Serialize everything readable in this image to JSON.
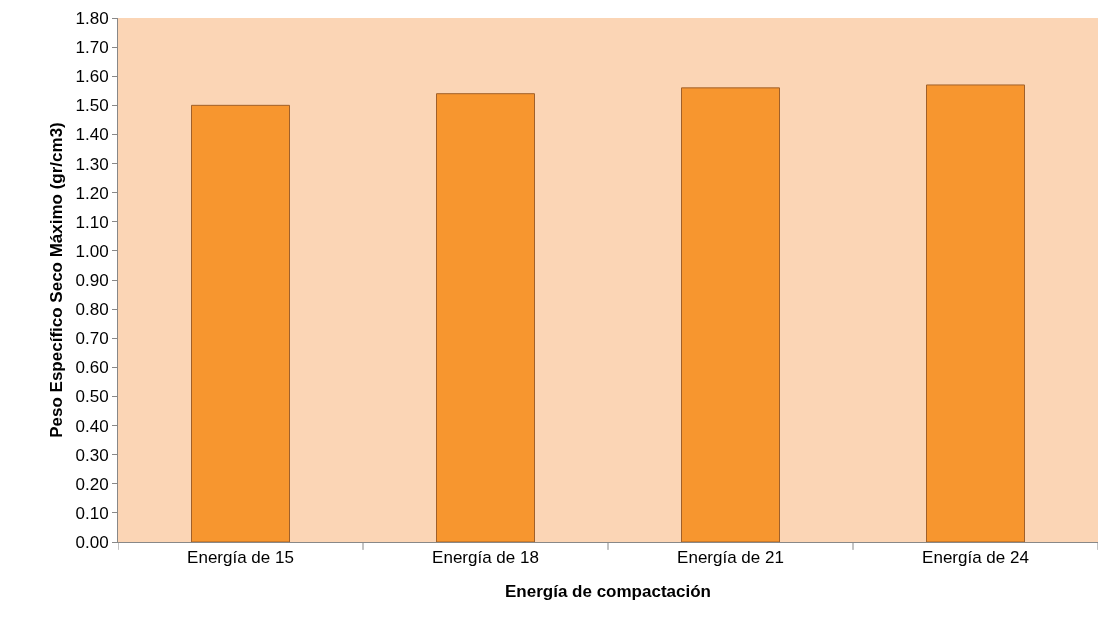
{
  "chart_data": {
    "type": "bar",
    "xlabel": "Energía de compactación",
    "ylabel": "Peso Específico Seco Máximo (gr/cm3)",
    "categories": [
      "Energía de 15",
      "Energía de 18",
      "Energía de 21",
      "Energía de 24"
    ],
    "values": [
      1.5,
      1.54,
      1.56,
      1.57
    ],
    "color": "#f7962f",
    "ylim": [
      0,
      1.8
    ],
    "yticks": [
      {
        "value": 0,
        "label": "0.00"
      },
      {
        "value": 0.1,
        "label": "0.10"
      },
      {
        "value": 0.2,
        "label": "0.20"
      },
      {
        "value": 0.3,
        "label": "0.30"
      },
      {
        "value": 0.4,
        "label": "0.40"
      },
      {
        "value": 0.5,
        "label": "0.50"
      },
      {
        "value": 0.6,
        "label": "0.60"
      },
      {
        "value": 0.7,
        "label": "0.70"
      },
      {
        "value": 0.8,
        "label": "0.80"
      },
      {
        "value": 0.9,
        "label": "0.90"
      },
      {
        "value": 1,
        "label": "1.00"
      },
      {
        "value": 1.1,
        "label": "1.10"
      },
      {
        "value": 1.2,
        "label": "1.20"
      },
      {
        "value": 1.3,
        "label": "1.30"
      },
      {
        "value": 1.4,
        "label": "1.40"
      },
      {
        "value": 1.5,
        "label": "1.50"
      },
      {
        "value": 1.6,
        "label": "1.60"
      },
      {
        "value": 1.7,
        "label": "1.70"
      },
      {
        "value": 1.8,
        "label": "1.80"
      }
    ],
    "grid": false,
    "legend": false
  }
}
